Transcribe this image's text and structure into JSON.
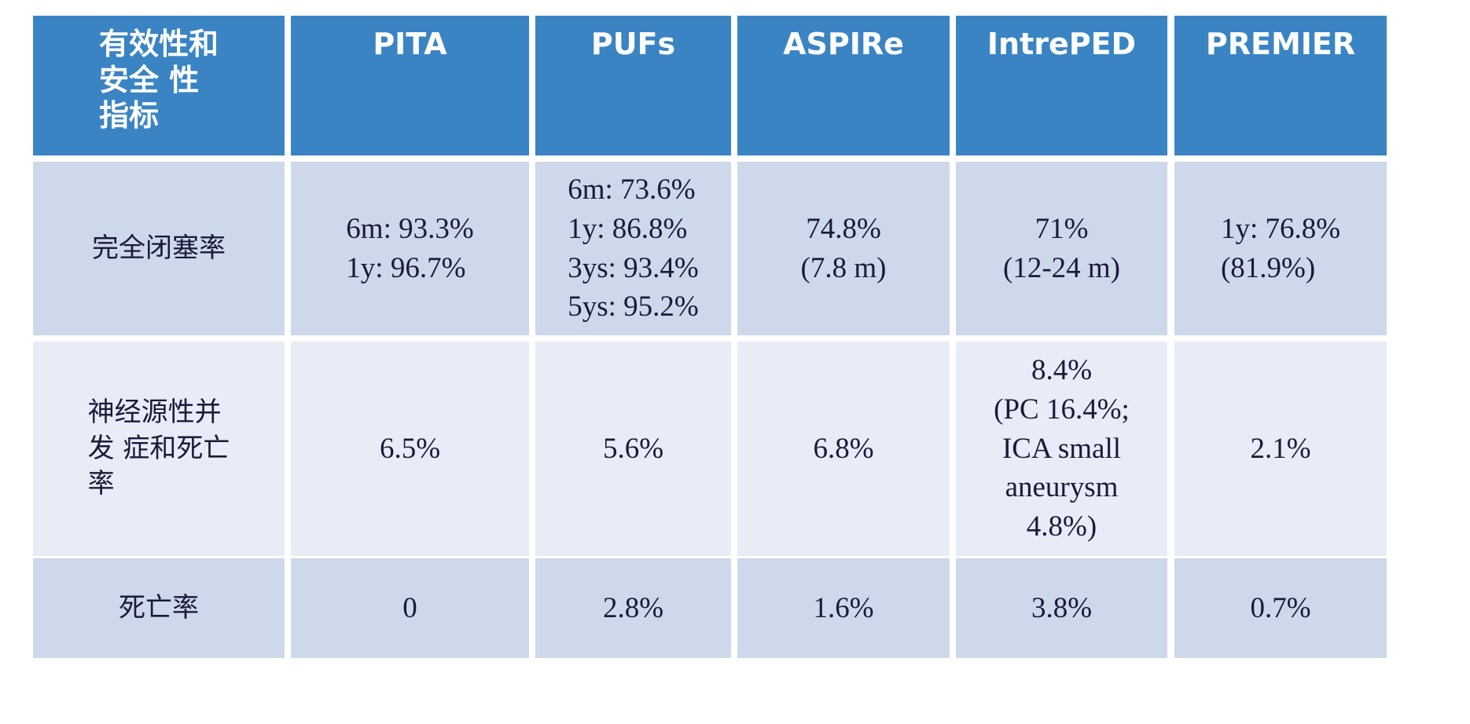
{
  "table": {
    "header": [
      [
        "有效性和",
        "安全 性",
        "指标"
      ],
      [
        "PITA"
      ],
      [
        "PUFs"
      ],
      [
        "ASPIRe"
      ],
      [
        "IntrePED"
      ],
      [
        "PREMIER"
      ]
    ],
    "rows": [
      [
        [
          "完全闭塞率"
        ],
        [
          "6m: 93.3%",
          "1y: 96.7%"
        ],
        [
          "6m: 73.6%",
          "1y: 86.8%",
          "3ys: 93.4%",
          "5ys: 95.2%"
        ],
        [
          "74.8%",
          "(7.8 m)"
        ],
        [
          "71%",
          "(12-24 m)"
        ],
        [
          "1y: 76.8%",
          "(81.9%)"
        ]
      ],
      [
        [
          "神经源性并",
          "发 症和死亡",
          "率"
        ],
        [
          "6.5%"
        ],
        [
          "5.6%"
        ],
        [
          "6.8%"
        ],
        [
          "8.4%",
          "(PC 16.4%;",
          "ICA small",
          "aneurysm",
          "4.8%)"
        ],
        [
          "2.1%"
        ]
      ],
      [
        [
          "死亡率"
        ],
        [
          "0"
        ],
        [
          "2.8%"
        ],
        [
          "1.6%"
        ],
        [
          "3.8%"
        ],
        [
          "0.7%"
        ]
      ]
    ]
  }
}
